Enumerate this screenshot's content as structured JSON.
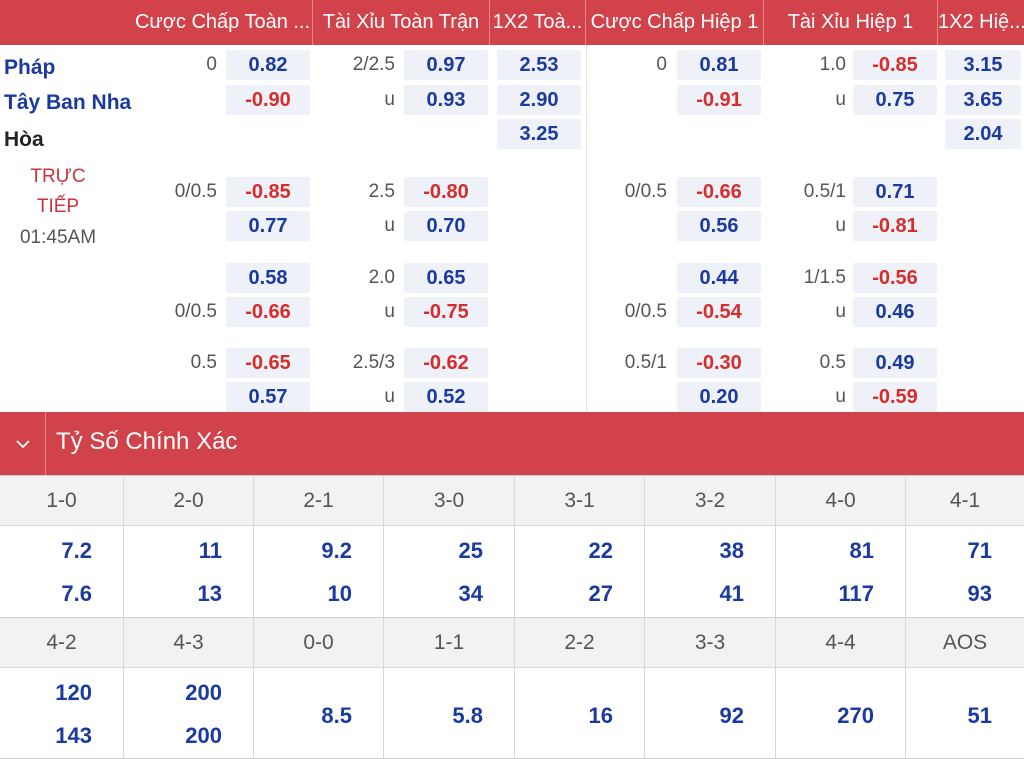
{
  "odds_header": {
    "columns": [
      "Cược Chấp Toàn ...",
      "Tài Xỉu Toàn Trận",
      "1X2 Toà...",
      "Cược Chấp Hiệp 1",
      "Tài Xỉu Hiệp 1",
      "1X2 Hiệ..."
    ]
  },
  "match": {
    "home": "Pháp",
    "away": "Tây Ban Nha",
    "draw": "Hòa",
    "status_line1": "TRỰC",
    "status_line2": "TIẾP",
    "time": "01:45AM"
  },
  "rows": [
    {
      "ft_hc": "0",
      "ft_hc_o": "0.82",
      "ft_ou": "2/2.5",
      "ft_ou_o": "0.97",
      "x12": "2.53",
      "h1_hc": "0",
      "h1_hc_o": "0.81",
      "h1_ou": "1.0",
      "h1_ou_o": "-0.85",
      "h1x12": "3.15"
    },
    {
      "ft_hc": "",
      "ft_hc_o": "-0.90",
      "ft_ou": "u",
      "ft_ou_o": "0.93",
      "x12": "2.90",
      "h1_hc": "",
      "h1_hc_o": "-0.91",
      "h1_ou": "u",
      "h1_ou_o": "0.75",
      "h1x12": "3.65"
    },
    {
      "ft_hc": "",
      "ft_hc_o": "",
      "ft_ou": "",
      "ft_ou_o": "",
      "x12": "3.25",
      "h1_hc": "",
      "h1_hc_o": "",
      "h1_ou": "",
      "h1_ou_o": "",
      "h1x12": "2.04"
    },
    {
      "ft_hc": "0/0.5",
      "ft_hc_o": "-0.85",
      "ft_ou": "2.5",
      "ft_ou_o": "-0.80",
      "x12": "",
      "h1_hc": "0/0.5",
      "h1_hc_o": "-0.66",
      "h1_ou": "0.5/1",
      "h1_ou_o": "0.71",
      "h1x12": ""
    },
    {
      "ft_hc": "",
      "ft_hc_o": "0.77",
      "ft_ou": "u",
      "ft_ou_o": "0.70",
      "x12": "",
      "h1_hc": "",
      "h1_hc_o": "0.56",
      "h1_ou": "u",
      "h1_ou_o": "-0.81",
      "h1x12": ""
    },
    {
      "ft_hc": "",
      "ft_hc_o": "0.58",
      "ft_ou": "2.0",
      "ft_ou_o": "0.65",
      "x12": "",
      "h1_hc": "",
      "h1_hc_o": "0.44",
      "h1_ou": "1/1.5",
      "h1_ou_o": "-0.56",
      "h1x12": ""
    },
    {
      "ft_hc": "0/0.5",
      "ft_hc_o": "-0.66",
      "ft_ou": "u",
      "ft_ou_o": "-0.75",
      "x12": "",
      "h1_hc": "0/0.5",
      "h1_hc_o": "-0.54",
      "h1_ou": "u",
      "h1_ou_o": "0.46",
      "h1x12": ""
    },
    {
      "ft_hc": "0.5",
      "ft_hc_o": "-0.65",
      "ft_ou": "2.5/3",
      "ft_ou_o": "-0.62",
      "x12": "",
      "h1_hc": "0.5/1",
      "h1_hc_o": "-0.30",
      "h1_ou": "0.5",
      "h1_ou_o": "0.49",
      "h1x12": ""
    },
    {
      "ft_hc": "",
      "ft_hc_o": "0.57",
      "ft_ou": "u",
      "ft_ou_o": "0.52",
      "x12": "",
      "h1_hc": "",
      "h1_hc_o": "0.20",
      "h1_ou": "u",
      "h1_ou_o": "-0.59",
      "h1x12": ""
    }
  ],
  "correct_score": {
    "title": "Tỷ Số Chính Xác",
    "row1": [
      {
        "score": "1-0",
        "home": "7.2",
        "away": "7.6"
      },
      {
        "score": "2-0",
        "home": "11",
        "away": "13"
      },
      {
        "score": "2-1",
        "home": "9.2",
        "away": "10"
      },
      {
        "score": "3-0",
        "home": "25",
        "away": "34"
      },
      {
        "score": "3-1",
        "home": "22",
        "away": "27"
      },
      {
        "score": "3-2",
        "home": "38",
        "away": "41"
      },
      {
        "score": "4-0",
        "home": "81",
        "away": "117"
      },
      {
        "score": "4-1",
        "home": "71",
        "away": "93"
      }
    ],
    "row2": [
      {
        "score": "4-2",
        "home": "120",
        "away": "143"
      },
      {
        "score": "4-3",
        "home": "200",
        "away": "200"
      },
      {
        "score": "0-0",
        "single": "8.5"
      },
      {
        "score": "1-1",
        "single": "5.8"
      },
      {
        "score": "2-2",
        "single": "16"
      },
      {
        "score": "3-3",
        "single": "92"
      },
      {
        "score": "4-4",
        "single": "270"
      },
      {
        "score": "AOS",
        "single": "51"
      }
    ]
  },
  "icons": {
    "collapse": "chevron-down-icon"
  }
}
